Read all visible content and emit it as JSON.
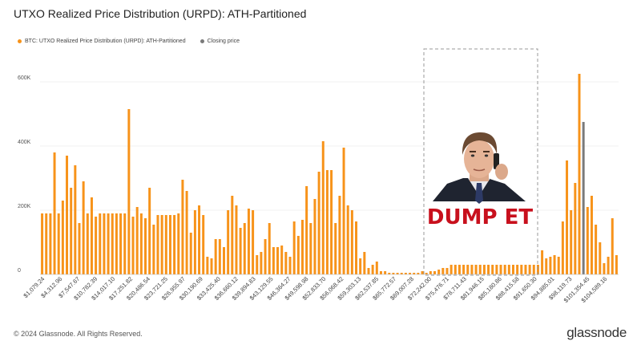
{
  "title": "UTXO Realized Price Distribution (URPD): ATH-Partitioned",
  "legend": {
    "series_label": "BTC: UTXO Realized Price Distribution (URPD): ATH-Partitioned",
    "closing_label": "Closing price"
  },
  "colors": {
    "bar": "#f7931a",
    "closing": "#7a7a7a",
    "grid": "#ececec"
  },
  "footer": {
    "copyright": "© 2024 Glassnode. All Rights Reserved.",
    "brand": "glassnode"
  },
  "meme": {
    "caption": "DUMP ET"
  },
  "chart_data": {
    "type": "bar",
    "title": "UTXO Realized Price Distribution (URPD): ATH-Partitioned",
    "ylim": [
      0,
      700000
    ],
    "y_ticks": [
      0,
      200000,
      400000,
      600000
    ],
    "y_tick_labels": [
      "0",
      "200K",
      "400K",
      "600K"
    ],
    "x_tick_labels": [
      "$1,079.24",
      "$4,312.96",
      "$7,547.67",
      "$10,782.39",
      "$14,017.10",
      "$17,251.82",
      "$20,486.54",
      "$23,721.25",
      "$26,955.97",
      "$30,190.69",
      "$33,425.40",
      "$36,660.12",
      "$39,894.83",
      "$43,129.55",
      "$46,364.27",
      "$49,598.98",
      "$52,833.70",
      "$56,068.42",
      "$59,303.13",
      "$62,537.85",
      "$65,772.57",
      "$69,007.28",
      "$72,242.00",
      "$75,476.71",
      "$78,711.43",
      "$81,946.15",
      "$85,180.86",
      "$88,415.58",
      "$91,650.30",
      "$94,885.01",
      "$98,119.73",
      "$101,354.45",
      "$104,589.16"
    ],
    "closing_price_bar_index": 131,
    "values": [
      190000,
      190000,
      190000,
      380000,
      190000,
      230000,
      370000,
      270000,
      340000,
      160000,
      290000,
      190000,
      240000,
      180000,
      190000,
      190000,
      190000,
      190000,
      190000,
      190000,
      190000,
      515000,
      180000,
      210000,
      190000,
      175000,
      270000,
      155000,
      185000,
      185000,
      185000,
      185000,
      185000,
      190000,
      295000,
      260000,
      130000,
      200000,
      215000,
      185000,
      55000,
      50000,
      110000,
      110000,
      85000,
      200000,
      245000,
      215000,
      145000,
      160000,
      205000,
      200000,
      60000,
      70000,
      110000,
      160000,
      85000,
      85000,
      90000,
      70000,
      55000,
      165000,
      120000,
      170000,
      275000,
      160000,
      235000,
      320000,
      415000,
      325000,
      325000,
      160000,
      245000,
      395000,
      215000,
      200000,
      165000,
      50000,
      70000,
      20000,
      30000,
      40000,
      10000,
      10000,
      5000,
      5000,
      5000,
      5000,
      5000,
      5000,
      5000,
      5000,
      10000,
      5000,
      10000,
      10000,
      15000,
      20000,
      20000,
      30000,
      30000,
      30000,
      30000,
      30000,
      30000,
      30000,
      30000,
      30000,
      30000,
      30000,
      30000,
      30000,
      30000,
      30000,
      30000,
      30000,
      30000,
      30000,
      30000,
      30000,
      30000,
      75000,
      50000,
      55000,
      60000,
      55000,
      165000,
      355000,
      200000,
      285000,
      625000,
      475000,
      210000,
      245000,
      155000,
      100000,
      35000,
      55000,
      175000,
      60000
    ]
  }
}
